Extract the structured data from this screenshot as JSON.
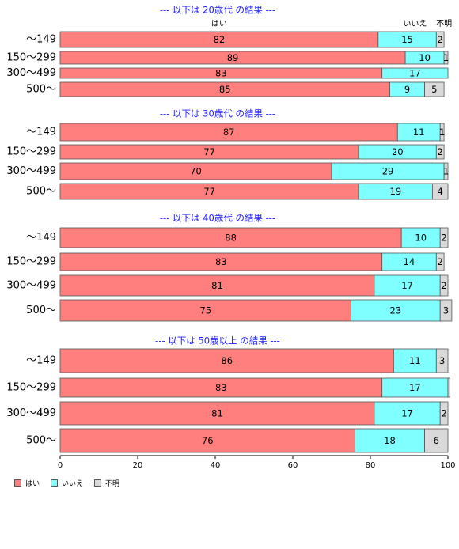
{
  "chart_data": {
    "type": "bar",
    "orientation": "horizontal",
    "stacked": true,
    "xlim": [
      0,
      100
    ],
    "x_ticks": [
      0,
      20,
      40,
      60,
      80,
      100
    ],
    "column_headers": [
      "はい",
      "いいえ",
      "不明"
    ],
    "colors": {
      "はい": "#ff7f7f",
      "いいえ": "#7fffff",
      "不明": "#d9d9d9"
    },
    "legend": {
      "position": "bottom-left",
      "entries": [
        "はい",
        "いいえ",
        "不明"
      ]
    },
    "panels": [
      {
        "title": "--- 以下は 20歳代 の結果 ---",
        "categories": [
          "～149",
          "150～299",
          "300～499",
          "500～"
        ],
        "series": [
          {
            "name": "はい",
            "values": [
              82,
              89,
              83,
              85
            ]
          },
          {
            "name": "いいえ",
            "values": [
              15,
              10,
              17,
              9
            ]
          },
          {
            "name": "不明",
            "values": [
              2,
              1,
              0,
              5
            ]
          }
        ],
        "labels": [
          [
            "82",
            "15",
            "2"
          ],
          [
            "89",
            "10",
            "1"
          ],
          [
            "83",
            "17",
            ""
          ],
          [
            "85",
            "9",
            "5"
          ]
        ]
      },
      {
        "title": "--- 以下は 30歳代 の結果 ---",
        "categories": [
          "～149",
          "150～299",
          "300～499",
          "500～"
        ],
        "series": [
          {
            "name": "はい",
            "values": [
              87,
              77,
              70,
              77
            ]
          },
          {
            "name": "いいえ",
            "values": [
              11,
              20,
              29,
              19
            ]
          },
          {
            "name": "不明",
            "values": [
              1,
              2,
              1,
              4
            ]
          }
        ],
        "labels": [
          [
            "87",
            "11",
            "1"
          ],
          [
            "77",
            "20",
            "2"
          ],
          [
            "70",
            "29",
            "1"
          ],
          [
            "77",
            "19",
            "4"
          ]
        ]
      },
      {
        "title": "--- 以下は 40歳代 の結果 ---",
        "categories": [
          "～149",
          "150～299",
          "300～499",
          "500～"
        ],
        "series": [
          {
            "name": "はい",
            "values": [
              88,
              83,
              81,
              75
            ]
          },
          {
            "name": "いいえ",
            "values": [
              10,
              14,
              17,
              23
            ]
          },
          {
            "name": "不明",
            "values": [
              2,
              2,
              2,
              3
            ]
          }
        ],
        "labels": [
          [
            "88",
            "10",
            "2"
          ],
          [
            "83",
            "14",
            "2"
          ],
          [
            "81",
            "17",
            "2"
          ],
          [
            "75",
            "23",
            "3"
          ]
        ]
      },
      {
        "title": "--- 以下は 50歳以上 の結果 ---",
        "categories": [
          "～149",
          "150～299",
          "300～499",
          "500～"
        ],
        "series": [
          {
            "name": "はい",
            "values": [
              86,
              83,
              81,
              76
            ]
          },
          {
            "name": "いいえ",
            "values": [
              11,
              17,
              17,
              18
            ]
          },
          {
            "name": "不明",
            "values": [
              3,
              0.5,
              2,
              6
            ]
          }
        ],
        "labels": [
          [
            "86",
            "11",
            "3"
          ],
          [
            "83",
            "17",
            ""
          ],
          [
            "81",
            "17",
            "2"
          ],
          [
            "76",
            "18",
            "6"
          ]
        ]
      }
    ]
  }
}
